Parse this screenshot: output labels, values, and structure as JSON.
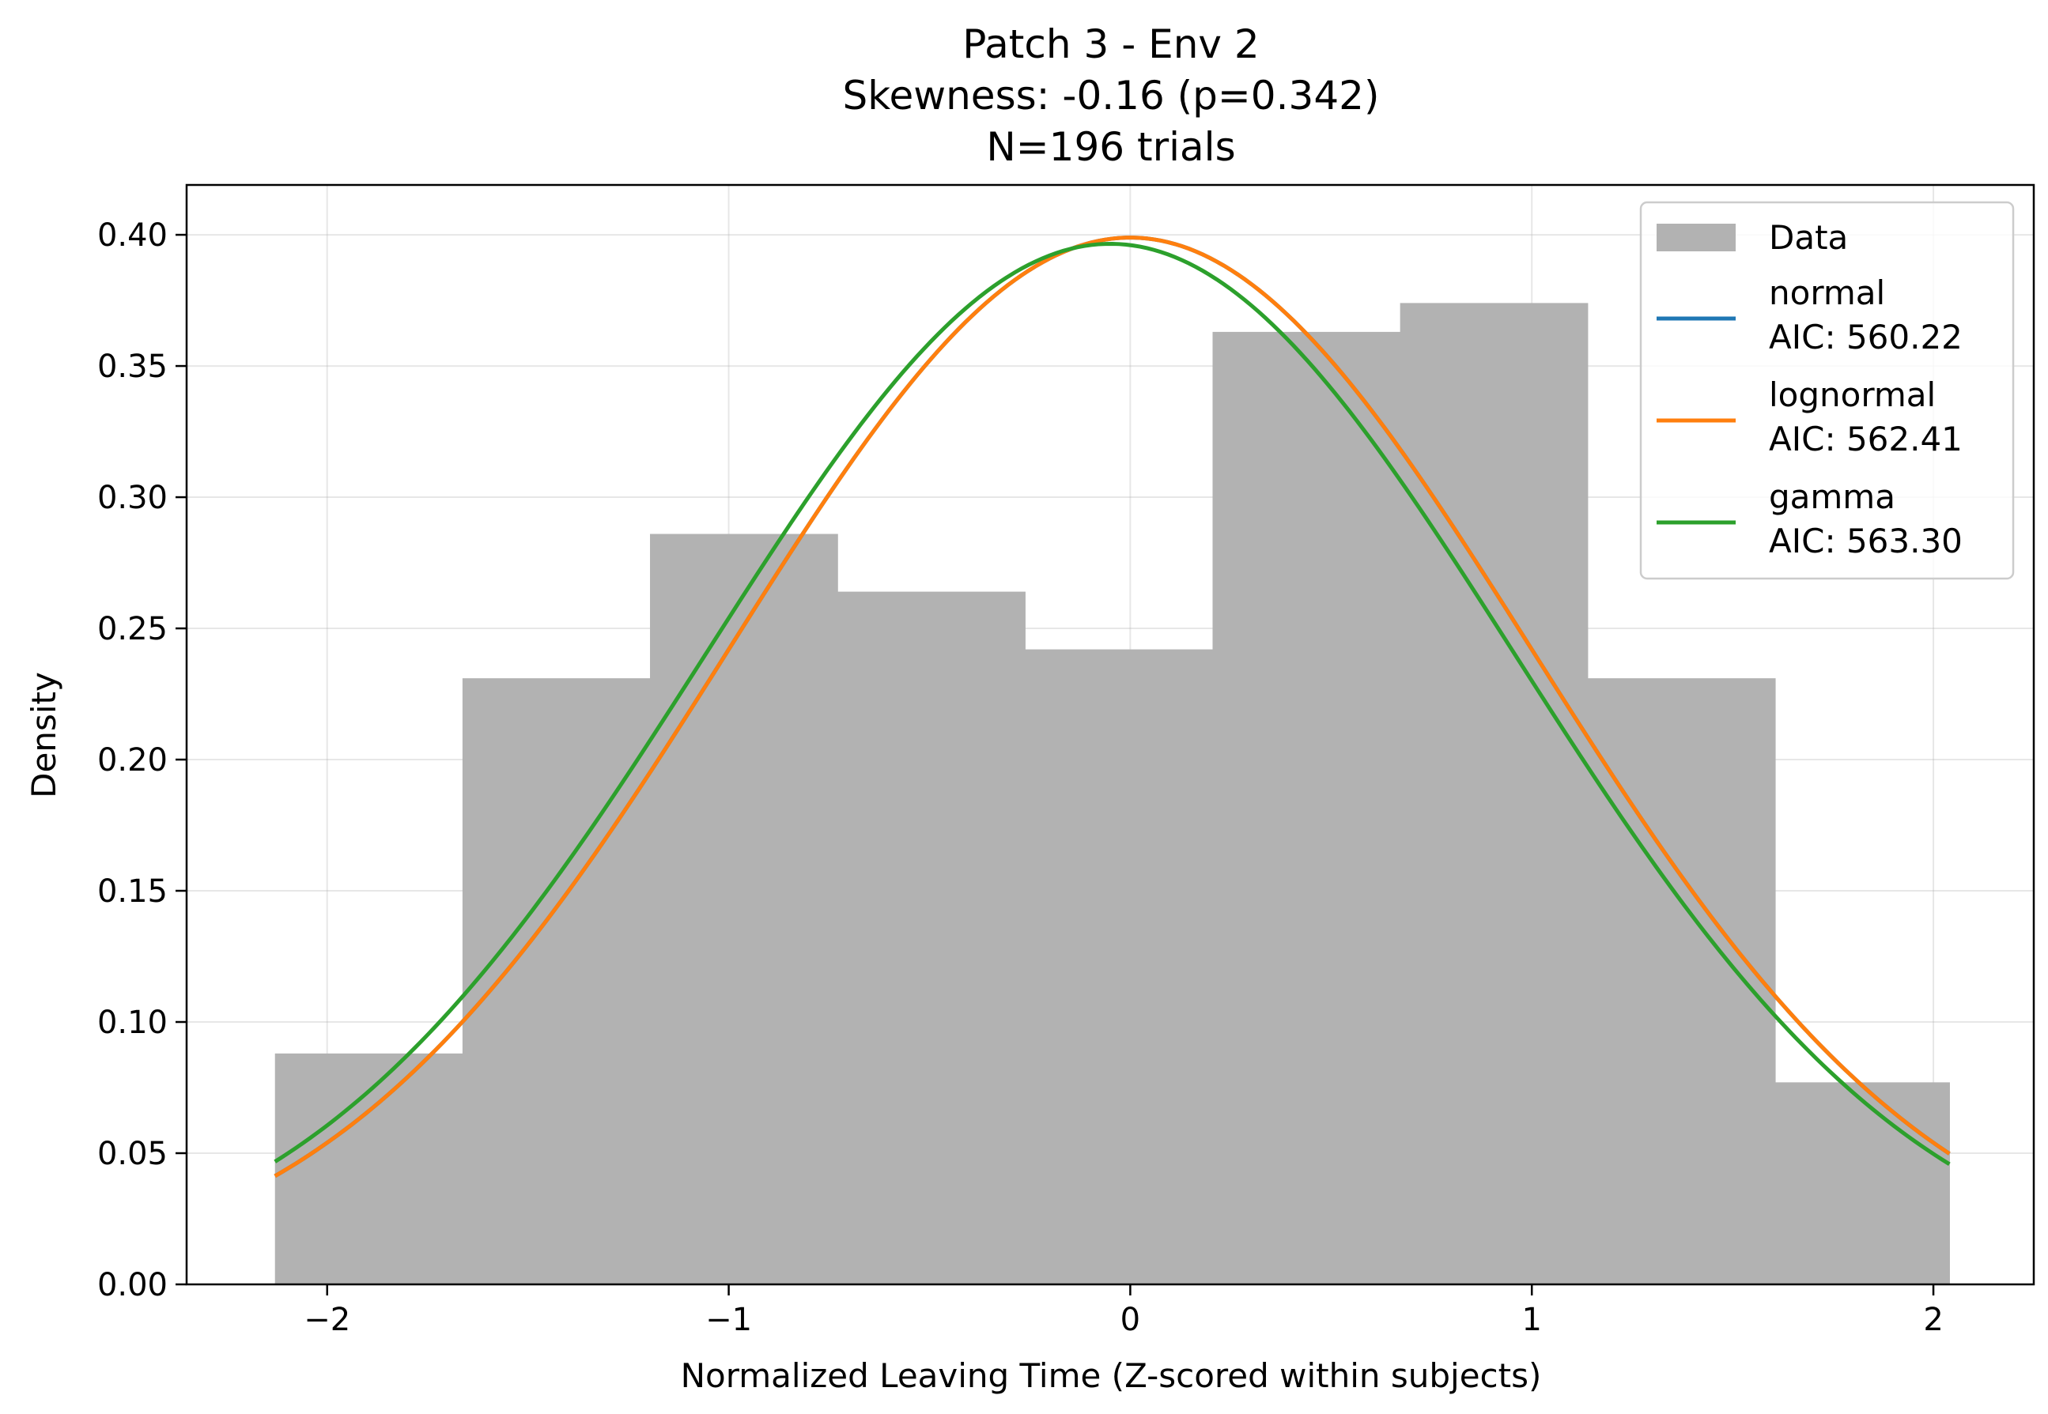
{
  "chart_data": {
    "type": "histogram",
    "title_lines": [
      "Patch 3 - Env 2",
      "Skewness: -0.16 (p=0.342)",
      "N=196 trials"
    ],
    "xlabel": "Normalized Leaving Time (Z-scored within subjects)",
    "ylabel": "Density",
    "xlim": [
      -2.35,
      2.25
    ],
    "ylim": [
      0,
      0.419
    ],
    "xticks": [
      -2,
      -1,
      0,
      1,
      2
    ],
    "xtick_labels": [
      "−2",
      "−1",
      "0",
      "1",
      "2"
    ],
    "yticks": [
      0.0,
      0.05,
      0.1,
      0.15,
      0.2,
      0.25,
      0.3,
      0.35,
      0.4
    ],
    "ytick_labels": [
      "0.00",
      "0.05",
      "0.10",
      "0.15",
      "0.20",
      "0.25",
      "0.30",
      "0.35",
      "0.40"
    ],
    "grid": true,
    "legend_position": "top-right",
    "histogram": {
      "name": "Data",
      "color": "#b2b2b2",
      "bin_edges": [
        -2.13,
        -1.663,
        -1.196,
        -0.729,
        -0.262,
        0.205,
        0.672,
        1.139,
        1.606,
        2.04
      ],
      "densities": [
        0.088,
        0.231,
        0.286,
        0.264,
        0.242,
        0.363,
        0.374,
        0.231,
        0.077
      ]
    },
    "fits": [
      {
        "name": "normal",
        "aic_label": "AIC: 560.22",
        "dist": "normal",
        "mean": 0.0,
        "sd": 1.0,
        "color": "#1f77b4"
      },
      {
        "name": "lognormal",
        "aic_label": "AIC: 562.41",
        "dist": "normal",
        "mean": 0.0,
        "sd": 1.0,
        "color": "#ff7f0e"
      },
      {
        "name": "gamma",
        "aic_label": "AIC: 563.30",
        "dist": "normal",
        "mean": -0.05,
        "sd": 1.006,
        "color": "#2ca02c"
      }
    ],
    "curve_x_range": [
      -2.13,
      2.04
    ]
  }
}
